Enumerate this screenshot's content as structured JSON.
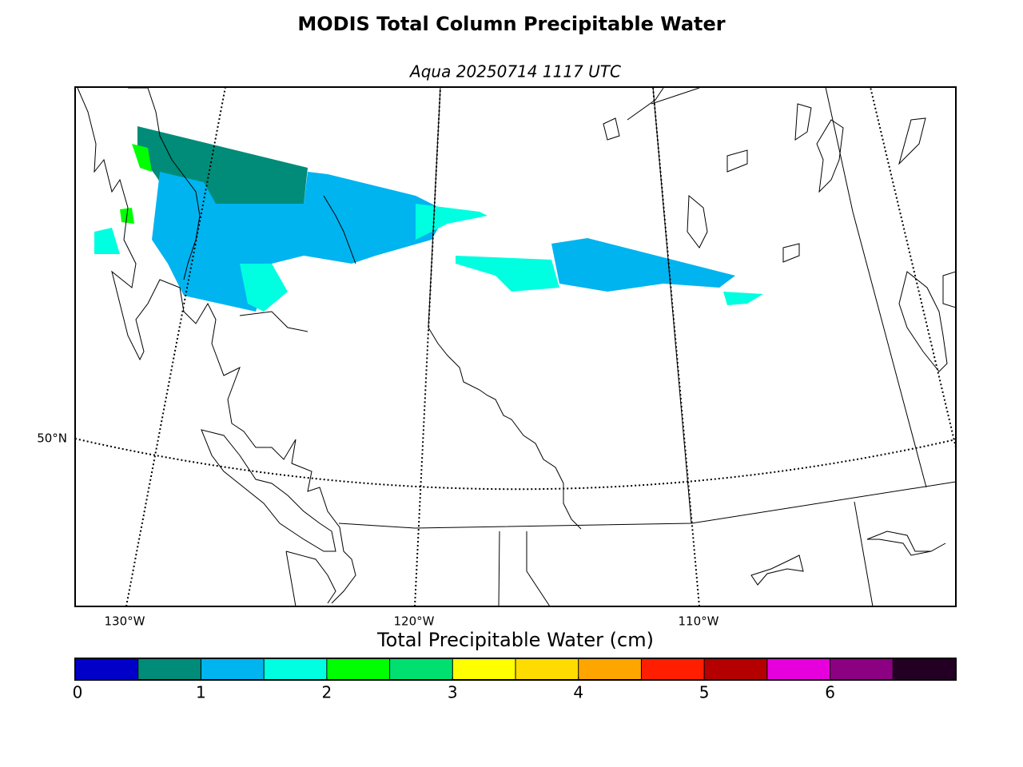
{
  "title": "MODIS Total Column Precipitable Water",
  "subtitle": "Aqua 20250714 1117 UTC",
  "map": {
    "lon_labels": [
      "130°W",
      "120°W",
      "110°W"
    ],
    "lat_labels": [
      "50°N"
    ]
  },
  "colorbar": {
    "label": "Total Precipitable Water (cm)",
    "range": [
      0,
      7
    ],
    "ticks": [
      0,
      1,
      2,
      3,
      4,
      5,
      6
    ],
    "boundaries": [
      0,
      0.5,
      1,
      1.5,
      2,
      2.5,
      3,
      3.5,
      4,
      4.5,
      5,
      5.5,
      6,
      6.5,
      7
    ],
    "colors": [
      "#0000c8",
      "#008c78",
      "#00b4f0",
      "#00ffe1",
      "#00ff00",
      "#00e070",
      "#ffff00",
      "#ffdc00",
      "#ffa500",
      "#ff1e00",
      "#b40000",
      "#e600dc",
      "#8c0082",
      "#230023"
    ]
  }
}
